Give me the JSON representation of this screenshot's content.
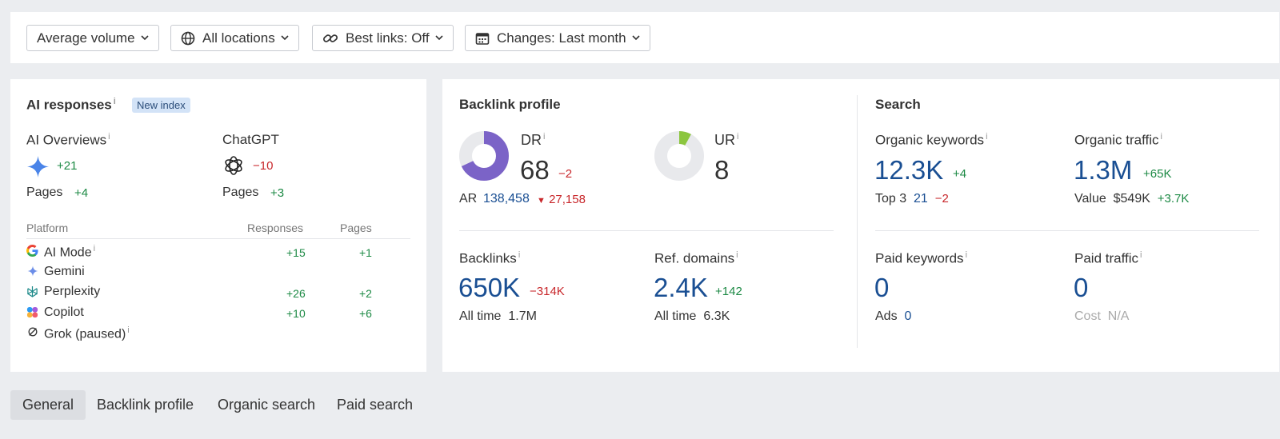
{
  "filters": [
    {
      "label": "Average volume",
      "icon": "none"
    },
    {
      "label": "All locations",
      "icon": "globe-icon"
    },
    {
      "label": "Best links: Off",
      "icon": "link-icon"
    },
    {
      "label": "Changes: Last month",
      "icon": "calendar-icon"
    }
  ],
  "ai": {
    "title": "AI responses",
    "badge": "New index",
    "overviews": {
      "label": "AI Overviews",
      "change": "+21",
      "pages_label": "Pages",
      "pages_change": "+4"
    },
    "chatgpt": {
      "label": "ChatGPT",
      "change": "−10",
      "pages_label": "Pages",
      "pages_change": "+3"
    },
    "table": {
      "headers": [
        "Platform",
        "Responses",
        "Pages"
      ],
      "rows": [
        {
          "name": "AI Mode",
          "responses": "+15",
          "pages": "+1"
        },
        {
          "name": "Gemini",
          "responses": "",
          "pages": ""
        },
        {
          "name": "Perplexity",
          "responses": "+26",
          "pages": "+2"
        },
        {
          "name": "Copilot",
          "responses": "+10",
          "pages": "+6"
        },
        {
          "name": "Grok (paused)",
          "responses": "",
          "pages": ""
        }
      ]
    }
  },
  "backlink": {
    "title": "Backlink profile",
    "dr": {
      "label": "DR",
      "value": "68",
      "change": "−2",
      "fraction": 0.68
    },
    "ur": {
      "label": "UR",
      "value": "8",
      "fraction": 0.08
    },
    "ar": {
      "label": "AR",
      "value": "138,458",
      "change": "27,158"
    },
    "backlinks": {
      "label": "Backlinks",
      "value": "650K",
      "change": "−314K",
      "sub_label": "All time",
      "sub_value": "1.7M"
    },
    "refdomains": {
      "label": "Ref. domains",
      "value": "2.4K",
      "change": "+142",
      "sub_label": "All time",
      "sub_value": "6.3K"
    }
  },
  "search": {
    "title": "Search",
    "organic_keywords": {
      "label": "Organic keywords",
      "value": "12.3K",
      "change": "+4",
      "sub_label": "Top 3",
      "sub_value": "21",
      "sub_change": "−2"
    },
    "organic_traffic": {
      "label": "Organic traffic",
      "value": "1.3M",
      "change": "+65K",
      "sub_label": "Value",
      "sub_value": "$549K",
      "sub_change": "+3.7K"
    },
    "paid_keywords": {
      "label": "Paid keywords",
      "value": "0",
      "sub_label": "Ads",
      "sub_value": "0"
    },
    "paid_traffic": {
      "label": "Paid traffic",
      "value": "0",
      "sub_label": "Cost",
      "sub_value": "N/A"
    }
  },
  "tabs": [
    "General",
    "Backlink profile",
    "Organic search",
    "Paid search"
  ],
  "colors": {
    "dr_donut": "#7b63c7",
    "ur_donut": "#8cc63f",
    "donut_track": "#e8e9ec"
  }
}
